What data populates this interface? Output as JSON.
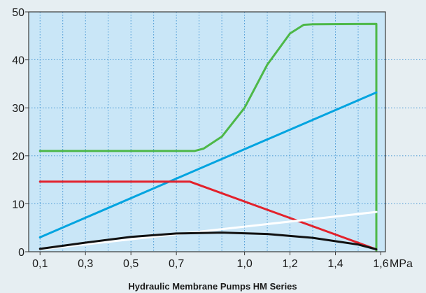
{
  "chart_data": {
    "type": "line",
    "title": "Hydraulic Membrane Pumps HM Series",
    "xlabel": "",
    "ylabel": "",
    "x_unit": "MPa",
    "xlim": [
      0.05,
      1.62
    ],
    "ylim": [
      0,
      50
    ],
    "x_ticks": [
      {
        "value": 0.1,
        "label": "0,1"
      },
      {
        "value": 0.3,
        "label": "0,3"
      },
      {
        "value": 0.5,
        "label": "0,5"
      },
      {
        "value": 0.7,
        "label": "0,7"
      },
      {
        "value": 1.0,
        "label": "1,0"
      },
      {
        "value": 1.2,
        "label": "1,2"
      },
      {
        "value": 1.4,
        "label": "1,4"
      },
      {
        "value": 1.6,
        "label": "1,6"
      }
    ],
    "y_ticks": [
      0,
      10,
      20,
      30,
      40,
      50
    ],
    "x_gridlines": [
      0.1,
      0.2,
      0.3,
      0.4,
      0.5,
      0.6,
      0.7,
      0.8,
      0.9,
      1.0,
      1.1,
      1.2,
      1.3,
      1.4,
      1.5
    ],
    "y_gridlines": [
      10,
      20,
      30,
      40
    ],
    "grid": true,
    "background_color": "#c9e6f7",
    "series": [
      {
        "color": "#4db848",
        "x": [
          0.1,
          0.78,
          0.82,
          0.9,
          1.0,
          1.1,
          1.2,
          1.26,
          1.3,
          1.58,
          1.58
        ],
        "y": [
          21,
          21,
          21.5,
          24,
          30,
          39,
          45.5,
          47.3,
          47.4,
          47.5,
          0.2
        ]
      },
      {
        "color": "#00a4e0",
        "x": [
          0.1,
          1.58
        ],
        "y": [
          3,
          33.2
        ]
      },
      {
        "color": "#e3212b",
        "x": [
          0.1,
          0.76,
          1.58
        ],
        "y": [
          14.6,
          14.6,
          0.5
        ]
      },
      {
        "color": "#ffffff",
        "x": [
          0.1,
          1.58
        ],
        "y": [
          0.5,
          8.3
        ]
      },
      {
        "color": "#111111",
        "x": [
          0.1,
          0.3,
          0.5,
          0.7,
          0.9,
          1.1,
          1.3,
          1.5,
          1.58
        ],
        "y": [
          0.6,
          1.9,
          3.1,
          3.8,
          4.0,
          3.7,
          2.9,
          1.5,
          0.5
        ]
      }
    ]
  }
}
